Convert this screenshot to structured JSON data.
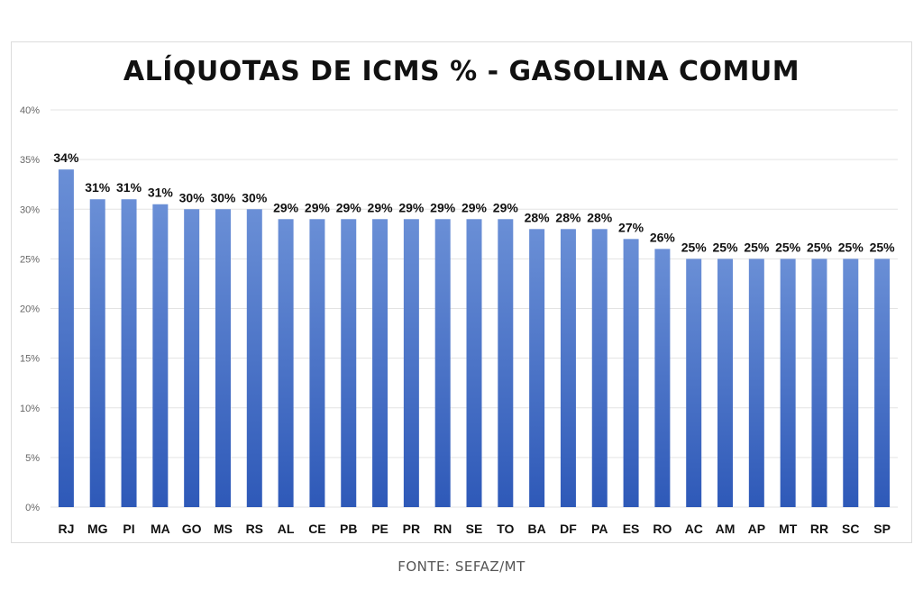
{
  "chart_data": {
    "type": "bar",
    "title": "ALÍQUOTAS DE ICMS % - GASOLINA COMUM",
    "categories": [
      "RJ",
      "MG",
      "PI",
      "MA",
      "GO",
      "MS",
      "RS",
      "AL",
      "CE",
      "PB",
      "PE",
      "PR",
      "RN",
      "SE",
      "TO",
      "BA",
      "DF",
      "PA",
      "ES",
      "RO",
      "AC",
      "AM",
      "AP",
      "MT",
      "RR",
      "SC",
      "SP"
    ],
    "values": [
      34,
      31,
      31,
      30.5,
      30,
      30,
      30,
      29,
      29,
      29,
      29,
      29,
      29,
      29,
      29,
      28,
      28,
      28,
      27,
      26,
      25,
      25,
      25,
      25,
      25,
      25,
      25
    ],
    "data_labels": [
      "34%",
      "31%",
      "31%",
      "31%",
      "30%",
      "30%",
      "30%",
      "29%",
      "29%",
      "29%",
      "29%",
      "29%",
      "29%",
      "29%",
      "29%",
      "28%",
      "28%",
      "28%",
      "27%",
      "26%",
      "25%",
      "25%",
      "25%",
      "25%",
      "25%",
      "25%",
      "25%"
    ],
    "ylim": [
      0,
      40
    ],
    "yticks": [
      0,
      5,
      10,
      15,
      20,
      25,
      30,
      35,
      40
    ],
    "ytick_labels": [
      "0%",
      "5%",
      "10%",
      "15%",
      "20%",
      "25%",
      "30%",
      "35%",
      "40%"
    ],
    "grid": true,
    "bar_color_top": "#6a8fd6",
    "bar_color_bottom": "#2e59b8",
    "xlabel": "",
    "ylabel": ""
  },
  "source": "FONTE: SEFAZ/MT"
}
